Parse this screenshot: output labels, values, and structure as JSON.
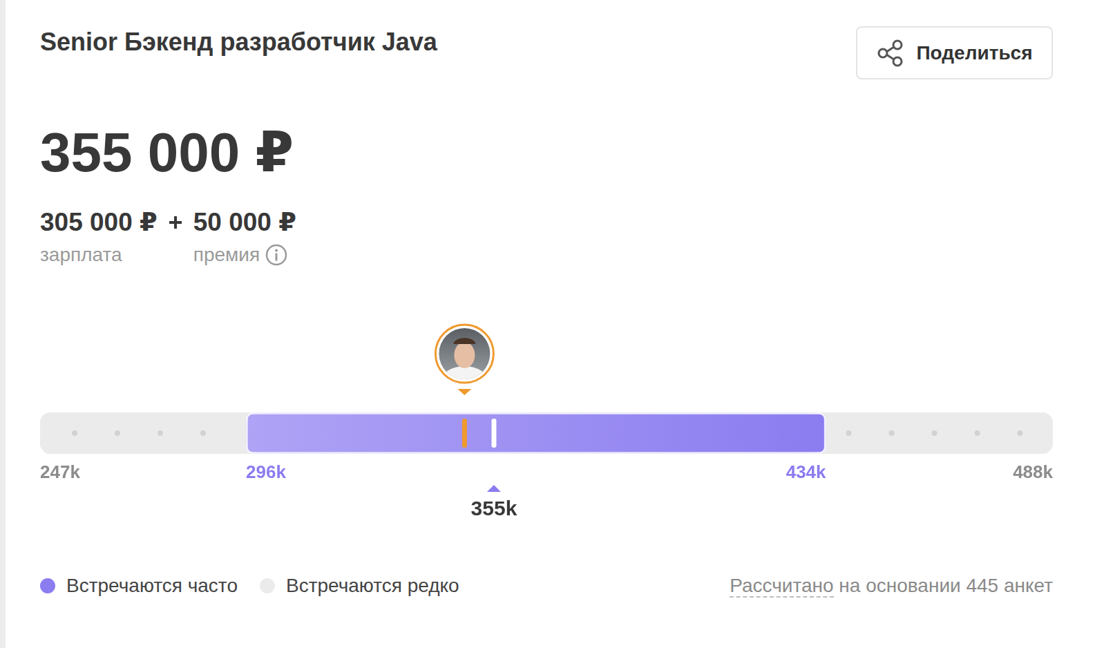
{
  "header": {
    "title": "Senior Бэкенд разработчик Java",
    "share_button": "Поделиться"
  },
  "total": "355 000 ₽",
  "breakdown": [
    {
      "amount": "305 000 ₽",
      "label": "зарплата"
    },
    {
      "amount": "50 000 ₽",
      "label": "премия"
    }
  ],
  "chart_data": {
    "type": "bar",
    "orientation": "horizontal",
    "xlim": [
      247,
      488
    ],
    "xticks": [
      {
        "value": 247,
        "label": "247k"
      },
      {
        "value": 296,
        "label": "296k"
      },
      {
        "value": 434,
        "label": "434k"
      },
      {
        "value": 488,
        "label": "488k"
      }
    ],
    "series": [
      {
        "name": "Встречаются часто",
        "color": "#8b7cf0",
        "values": [
          296,
          434
        ]
      },
      {
        "name": "Встречаются редко",
        "color": "#ebebeb",
        "values": [
          247,
          488
        ]
      }
    ],
    "median": {
      "value": 355,
      "label": "355k"
    },
    "user_value": 348,
    "legend": "bottom",
    "grid": false
  },
  "footnote": "Рассчитано на основании 445 анкет"
}
